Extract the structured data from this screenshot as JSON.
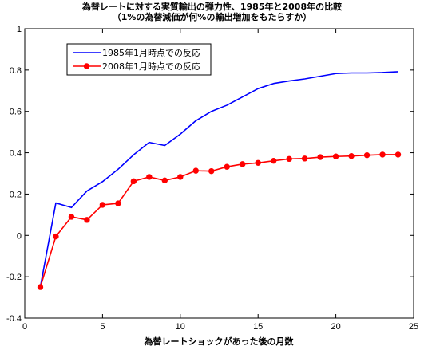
{
  "chart_data": {
    "type": "line",
    "title": "為替レートに対する実質輸出の弾力性、1985年と2008年の比較",
    "subtitle": "（1%の為替減価が何%の輸出増加をもたらすか）",
    "xlabel": "為替レートショックがあった後の月数",
    "ylabel": "",
    "xlim": [
      0,
      25
    ],
    "ylim": [
      -0.4,
      1
    ],
    "xticks": [
      "0",
      "5",
      "10",
      "15",
      "20",
      "25"
    ],
    "yticks": [
      "-0.4",
      "-0.2",
      "0",
      "0.2",
      "0.4",
      "0.6",
      "0.8",
      "1"
    ],
    "legend_position": "top-left",
    "grid": false,
    "x": [
      1,
      2,
      3,
      4,
      5,
      6,
      7,
      8,
      9,
      10,
      11,
      12,
      13,
      14,
      15,
      16,
      17,
      18,
      19,
      20,
      21,
      22,
      23,
      24
    ],
    "series": [
      {
        "name": "1985年1月時点での反応",
        "color": "#0000ff",
        "marker": "none",
        "values": [
          -0.25,
          0.157,
          0.135,
          0.215,
          0.26,
          0.32,
          0.39,
          0.45,
          0.435,
          0.49,
          0.555,
          0.6,
          0.63,
          0.67,
          0.71,
          0.735,
          0.747,
          0.757,
          0.77,
          0.783,
          0.786,
          0.786,
          0.788,
          0.792
        ]
      },
      {
        "name": "2008年1月時点での反応",
        "color": "#ff0000",
        "marker": "circle",
        "values": [
          -0.25,
          -0.005,
          0.09,
          0.075,
          0.148,
          0.155,
          0.262,
          0.283,
          0.266,
          0.283,
          0.313,
          0.311,
          0.332,
          0.345,
          0.351,
          0.361,
          0.37,
          0.372,
          0.379,
          0.382,
          0.384,
          0.388,
          0.391,
          0.391
        ]
      }
    ]
  }
}
